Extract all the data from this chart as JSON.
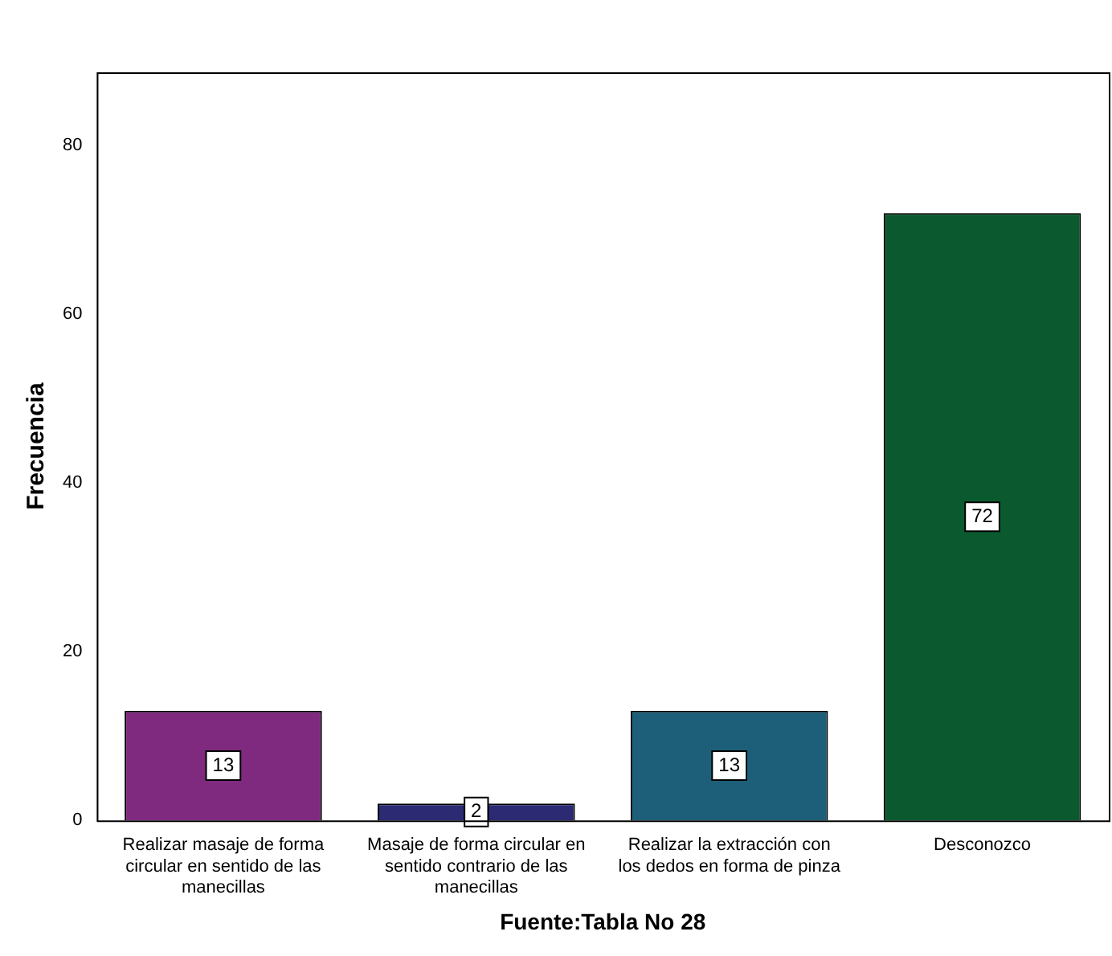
{
  "chart_data": {
    "type": "bar",
    "xlabel": "Fuente:Tabla No 28",
    "ylabel": "Frecuencia",
    "categories": [
      "Realizar masaje de forma circular en sentido de las manecillas",
      "Masaje de forma circular en sentido contrario de las manecillas",
      "Realizar la extracción con los dedos en forma de pinza",
      "Desconozco"
    ],
    "values": [
      13,
      2,
      13,
      72
    ],
    "colors": [
      "#7f2a7f",
      "#2b2a72",
      "#1d5f78",
      "#0b5a2f"
    ],
    "ylim": [
      0,
      88.7
    ],
    "yticks": [
      0,
      20,
      40,
      60,
      80
    ],
    "grid": false,
    "legend": false,
    "data_labels": true
  }
}
